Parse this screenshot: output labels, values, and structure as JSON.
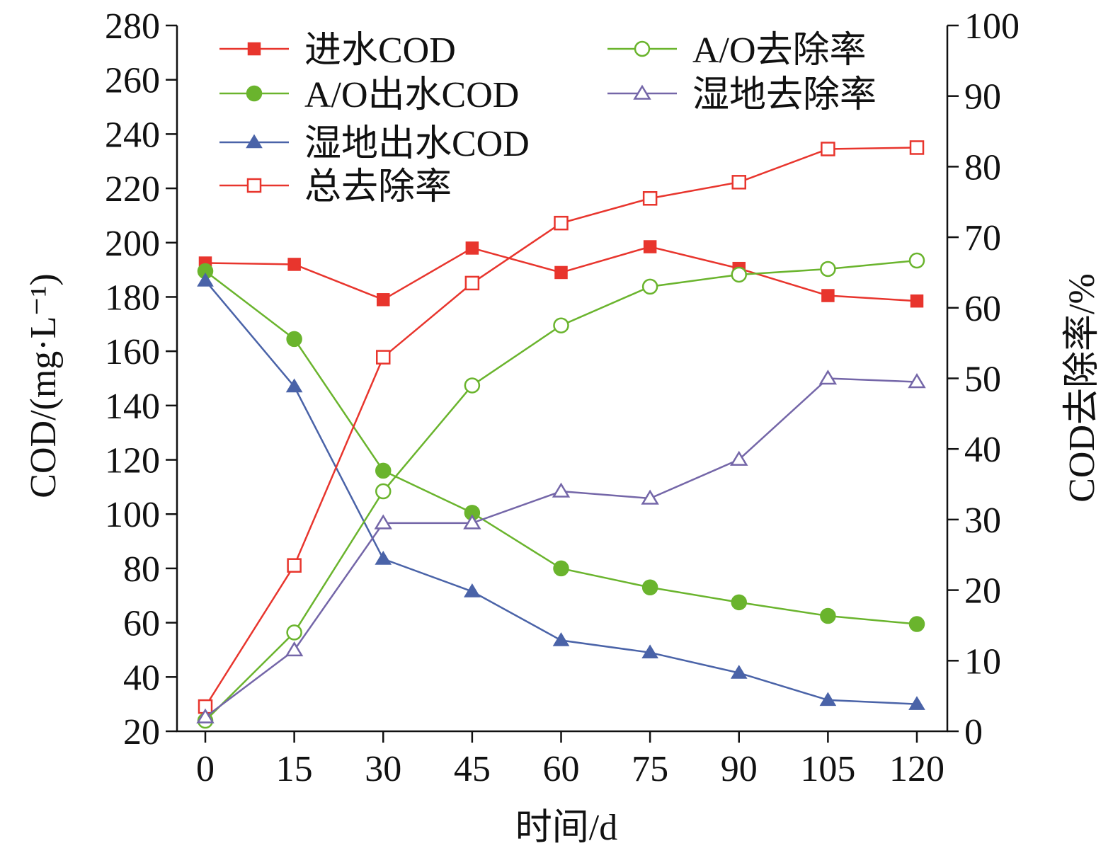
{
  "chart_data": {
    "type": "line",
    "x": [
      0,
      15,
      30,
      45,
      60,
      75,
      90,
      105,
      120
    ],
    "xlabel": "时间/d",
    "ylabel_left": "COD/(mg·L⁻¹)",
    "ylabel_right": "COD去除率/%",
    "xlim": [
      0,
      120
    ],
    "ylim_left": [
      20,
      280
    ],
    "ylim_right": [
      0,
      100
    ],
    "x_ticks": [
      "0",
      "15",
      "30",
      "45",
      "60",
      "75",
      "90",
      "105",
      "120"
    ],
    "y_left_ticks": [
      "20",
      "40",
      "60",
      "80",
      "100",
      "120",
      "140",
      "160",
      "180",
      "200",
      "220",
      "240",
      "260",
      "280"
    ],
    "y_right_ticks": [
      "0",
      "10",
      "20",
      "30",
      "40",
      "50",
      "60",
      "70",
      "80",
      "90",
      "100"
    ],
    "grid": false,
    "legend_position": "top-left",
    "series": [
      {
        "name": "进水COD",
        "axis": "left",
        "marker": "square-filled",
        "color": "#e8352d",
        "values": [
          192.5,
          192,
          179,
          198,
          189,
          198.5,
          190.5,
          180.5,
          178.5
        ]
      },
      {
        "name": "A/O出水COD",
        "axis": "left",
        "marker": "circle-filled",
        "color": "#6ab42d",
        "values": [
          189.5,
          164.5,
          116,
          100.5,
          80,
          73,
          67.5,
          62.5,
          59.5
        ]
      },
      {
        "name": "湿地出水COD",
        "axis": "left",
        "marker": "triangle-filled",
        "color": "#4a63a8",
        "values": [
          186,
          147,
          83.5,
          71.5,
          53.5,
          49,
          41.5,
          31.5,
          30
        ]
      },
      {
        "name": "总去除率",
        "axis": "right",
        "marker": "square-open",
        "color": "#e8352d",
        "values": [
          3.5,
          23.5,
          53,
          63.5,
          72,
          75.5,
          77.8,
          82.5,
          82.7
        ]
      },
      {
        "name": "A/O去除率",
        "axis": "right",
        "marker": "circle-open",
        "color": "#6ab42d",
        "values": [
          1.5,
          14,
          34,
          49,
          57.5,
          63,
          64.7,
          65.5,
          66.7
        ]
      },
      {
        "name": "湿地去除率",
        "axis": "right",
        "marker": "triangle-open",
        "color": "#7466a8",
        "values": [
          2,
          11.5,
          29.5,
          29.5,
          34,
          33,
          38.5,
          50,
          49.5
        ]
      }
    ],
    "legend": [
      {
        "series": 0,
        "col": 0,
        "row": 0
      },
      {
        "series": 1,
        "col": 0,
        "row": 1
      },
      {
        "series": 2,
        "col": 0,
        "row": 2
      },
      {
        "series": 3,
        "col": 0,
        "row": 3
      },
      {
        "series": 4,
        "col": 1,
        "row": 0
      },
      {
        "series": 5,
        "col": 1,
        "row": 1
      }
    ]
  }
}
